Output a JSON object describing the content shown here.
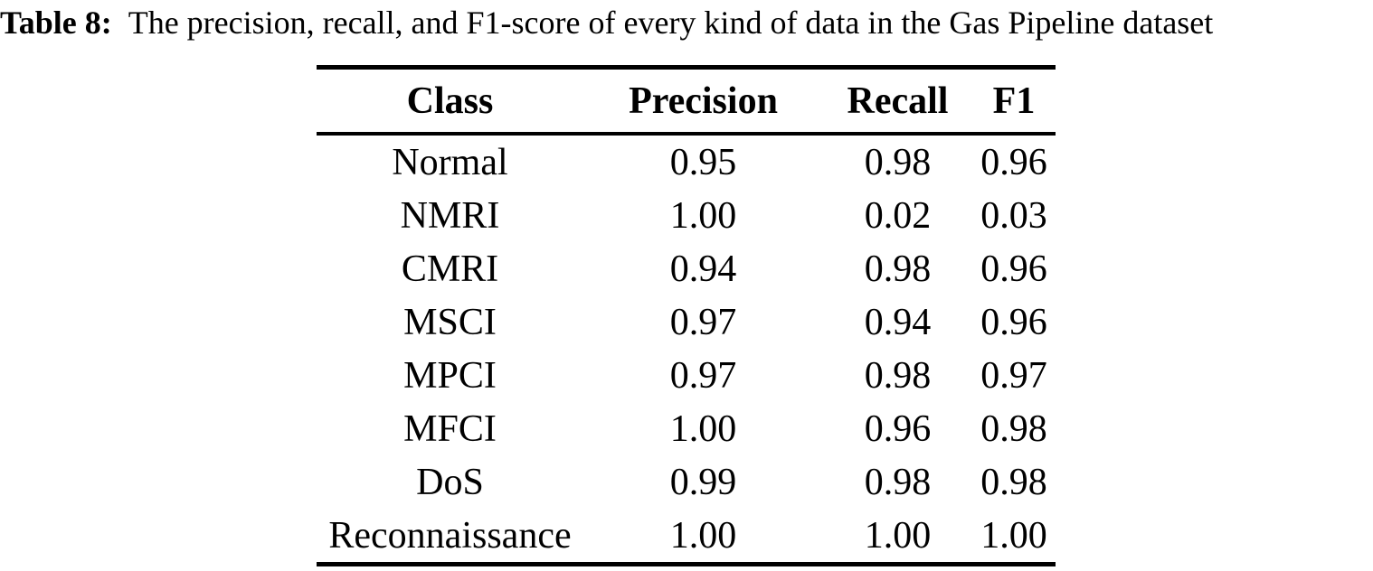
{
  "caption": {
    "label": "Table 8:",
    "text": "The precision, recall, and F1-score of every kind of data in the Gas Pipeline dataset"
  },
  "table": {
    "columns": [
      "Class",
      "Precision",
      "Recall",
      "F1"
    ],
    "rows": [
      [
        "Normal",
        "0.95",
        "0.98",
        "0.96"
      ],
      [
        "NMRI",
        "1.00",
        "0.02",
        "0.03"
      ],
      [
        "CMRI",
        "0.94",
        "0.98",
        "0.96"
      ],
      [
        "MSCI",
        "0.97",
        "0.94",
        "0.96"
      ],
      [
        "MPCI",
        "0.97",
        "0.98",
        "0.97"
      ],
      [
        "MFCI",
        "1.00",
        "0.96",
        "0.98"
      ],
      [
        "DoS",
        "0.99",
        "0.98",
        "0.98"
      ],
      [
        "Reconnaissance",
        "1.00",
        "1.00",
        "1.00"
      ]
    ]
  },
  "colors": {
    "text": "#000000",
    "background": "#ffffff",
    "rule": "#000000"
  }
}
